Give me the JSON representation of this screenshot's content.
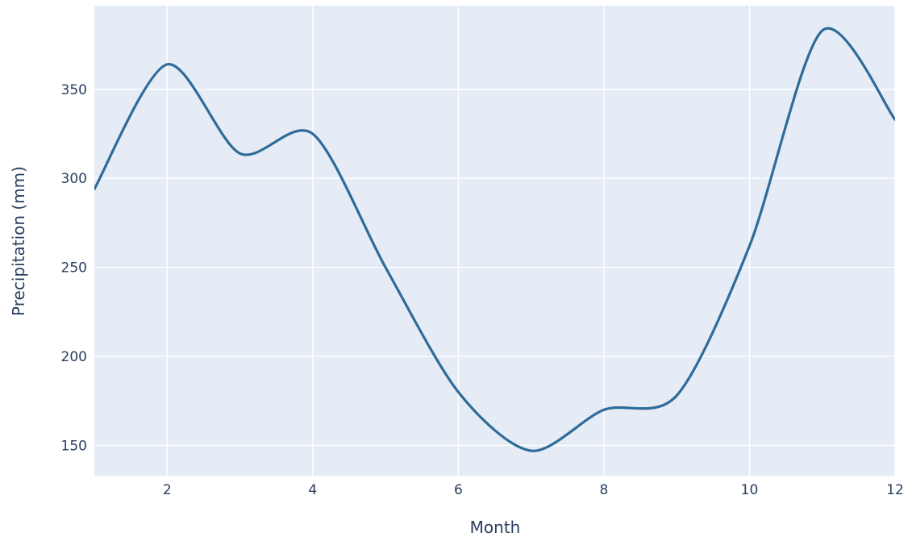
{
  "chart_data": {
    "type": "line",
    "title": "",
    "xlabel": "Month",
    "ylabel": "Precipitation (mm)",
    "x": [
      1,
      2,
      3,
      4,
      5,
      6,
      7,
      8,
      9,
      10,
      11,
      12
    ],
    "series": [
      {
        "values": [
          294,
          364,
          314,
          325,
          250,
          180,
          147,
          170,
          178,
          262,
          383,
          333
        ]
      }
    ],
    "xlim": [
      1,
      12
    ],
    "ylim": [
      133,
      397
    ],
    "xticks": [
      2,
      4,
      6,
      8,
      10,
      12
    ],
    "yticks": [
      150,
      200,
      250,
      300,
      350
    ],
    "grid": true,
    "line_color": "#2f6b99",
    "plot_bg": "#e5ecf6",
    "grid_color": "#ffffff",
    "text_color": "#2a3f5f"
  }
}
